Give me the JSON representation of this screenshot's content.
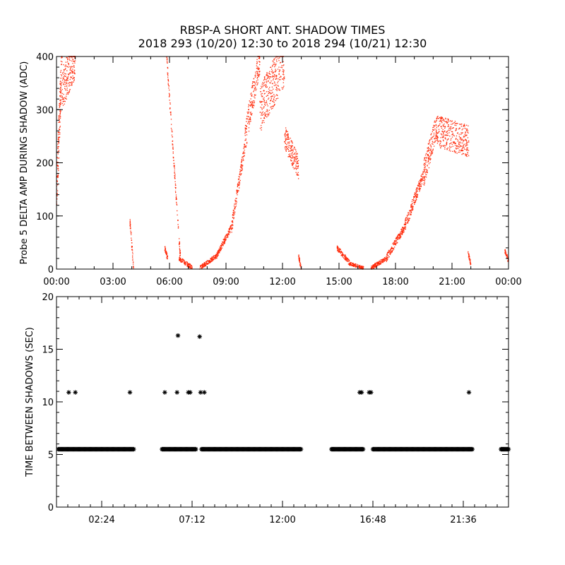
{
  "title": "RBSP-A SHORT ANT. SHADOW TIMES",
  "subtitle": "2018 293 (10/20) 12:30 to 2018 294 (10/21) 12:30",
  "colors": {
    "points_top": "#ff2a0a",
    "points_bottom": "#000000",
    "axes": "#000000",
    "background": "#ffffff"
  },
  "chart_data": [
    {
      "type": "scatter",
      "title": "",
      "xlabel": "",
      "ylabel": "Probe 5 DELTA AMP DURING SHADOW (ADC)",
      "x_unit": "hours",
      "xlim": [
        0,
        24
      ],
      "ylim": [
        0,
        400
      ],
      "x_tick_values": [
        0,
        3,
        6,
        9,
        12,
        15,
        18,
        21,
        24
      ],
      "x_tick_labels": [
        "00:00",
        "03:00",
        "06:00",
        "09:00",
        "12:00",
        "15:00",
        "18:00",
        "21:00",
        "00:00"
      ],
      "y_tick_values": [
        0,
        100,
        200,
        300,
        400
      ],
      "y_tick_labels": [
        "0",
        "100",
        "200",
        "300",
        "400"
      ],
      "grid": false,
      "legend": "none",
      "series": [
        {
          "name": "",
          "segments": [
            {
              "x": [
                0.0,
                0.3
              ],
              "y": [
                140,
                400
              ],
              "spread": 90
            },
            {
              "x": [
                0.3,
                1.0
              ],
              "y": [
                340,
                400
              ],
              "spread": 80
            },
            {
              "x": [
                3.9,
                4.1
              ],
              "y": [
                90,
                0
              ],
              "spread": 15
            },
            {
              "x": [
                5.75,
                5.9
              ],
              "y": [
                40,
                20
              ],
              "spread": 10
            },
            {
              "x": [
                5.85,
                6.6
              ],
              "y": [
                400,
                10
              ],
              "spread": 20
            },
            {
              "x": [
                6.5,
                7.2
              ],
              "y": [
                20,
                3
              ],
              "spread": 8
            },
            {
              "x": [
                7.6,
                8.5
              ],
              "y": [
                2,
                25
              ],
              "spread": 8
            },
            {
              "x": [
                8.5,
                9.3
              ],
              "y": [
                25,
                80
              ],
              "spread": 12
            },
            {
              "x": [
                9.3,
                10.0
              ],
              "y": [
                80,
                230
              ],
              "spread": 25
            },
            {
              "x": [
                10.0,
                10.8
              ],
              "y": [
                240,
                400
              ],
              "spread": 60
            },
            {
              "x": [
                10.8,
                12.1
              ],
              "y": [
                300,
                390
              ],
              "spread": 90
            },
            {
              "x": [
                12.1,
                12.85
              ],
              "y": [
                250,
                190
              ],
              "spread": 45
            },
            {
              "x": [
                12.85,
                13.0
              ],
              "y": [
                25,
                0
              ],
              "spread": 8
            },
            {
              "x": [
                14.9,
                15.6
              ],
              "y": [
                40,
                10
              ],
              "spread": 10
            },
            {
              "x": [
                15.6,
                16.3
              ],
              "y": [
                10,
                2
              ],
              "spread": 6
            },
            {
              "x": [
                16.7,
                17.5
              ],
              "y": [
                2,
                20
              ],
              "spread": 8
            },
            {
              "x": [
                17.5,
                18.5
              ],
              "y": [
                20,
                80
              ],
              "spread": 14
            },
            {
              "x": [
                18.5,
                19.5
              ],
              "y": [
                80,
                180
              ],
              "spread": 22
            },
            {
              "x": [
                19.5,
                20.2
              ],
              "y": [
                180,
                270
              ],
              "spread": 50
            },
            {
              "x": [
                20.2,
                21.9
              ],
              "y": [
                260,
                240
              ],
              "spread": 60
            },
            {
              "x": [
                21.85,
                22.0
              ],
              "y": [
                30,
                10
              ],
              "spread": 8
            },
            {
              "x": [
                23.8,
                24.0
              ],
              "y": [
                35,
                15
              ],
              "spread": 10
            }
          ]
        }
      ]
    },
    {
      "type": "scatter",
      "title": "",
      "xlabel": "",
      "ylabel": "TIME BETWEEN SHADOWS (SEC)",
      "x_unit": "hours",
      "xlim": [
        0,
        24
      ],
      "ylim": [
        0,
        20
      ],
      "x_tick_values": [
        2.4,
        7.2,
        12.0,
        16.8,
        21.6
      ],
      "x_tick_labels": [
        "02:24",
        "07:12",
        "12:00",
        "16:48",
        "21:36"
      ],
      "y_tick_values": [
        0,
        5,
        10,
        15,
        20
      ],
      "y_tick_labels": [
        "0",
        "5",
        "10",
        "15",
        "20"
      ],
      "grid": false,
      "legend": "none",
      "series": [
        {
          "name": "",
          "marker": "asterisk",
          "baseline_value": 5.5,
          "baseline_ranges": [
            [
              0.1,
              4.1
            ],
            [
              5.6,
              7.4
            ],
            [
              7.7,
              13.0
            ],
            [
              14.6,
              16.3
            ],
            [
              16.8,
              22.1
            ],
            [
              23.6,
              24.0
            ]
          ],
          "points": [
            {
              "x": 0.65,
              "y": 10.9
            },
            {
              "x": 1.0,
              "y": 10.9
            },
            {
              "x": 3.9,
              "y": 10.9
            },
            {
              "x": 5.75,
              "y": 10.9
            },
            {
              "x": 6.4,
              "y": 10.9
            },
            {
              "x": 6.45,
              "y": 16.3
            },
            {
              "x": 7.0,
              "y": 10.9
            },
            {
              "x": 7.1,
              "y": 10.9
            },
            {
              "x": 7.6,
              "y": 16.2
            },
            {
              "x": 7.65,
              "y": 10.9
            },
            {
              "x": 7.85,
              "y": 10.9
            },
            {
              "x": 16.1,
              "y": 10.9
            },
            {
              "x": 16.2,
              "y": 10.9
            },
            {
              "x": 16.6,
              "y": 10.9
            },
            {
              "x": 16.7,
              "y": 10.9
            },
            {
              "x": 21.9,
              "y": 10.9
            }
          ]
        }
      ]
    }
  ]
}
